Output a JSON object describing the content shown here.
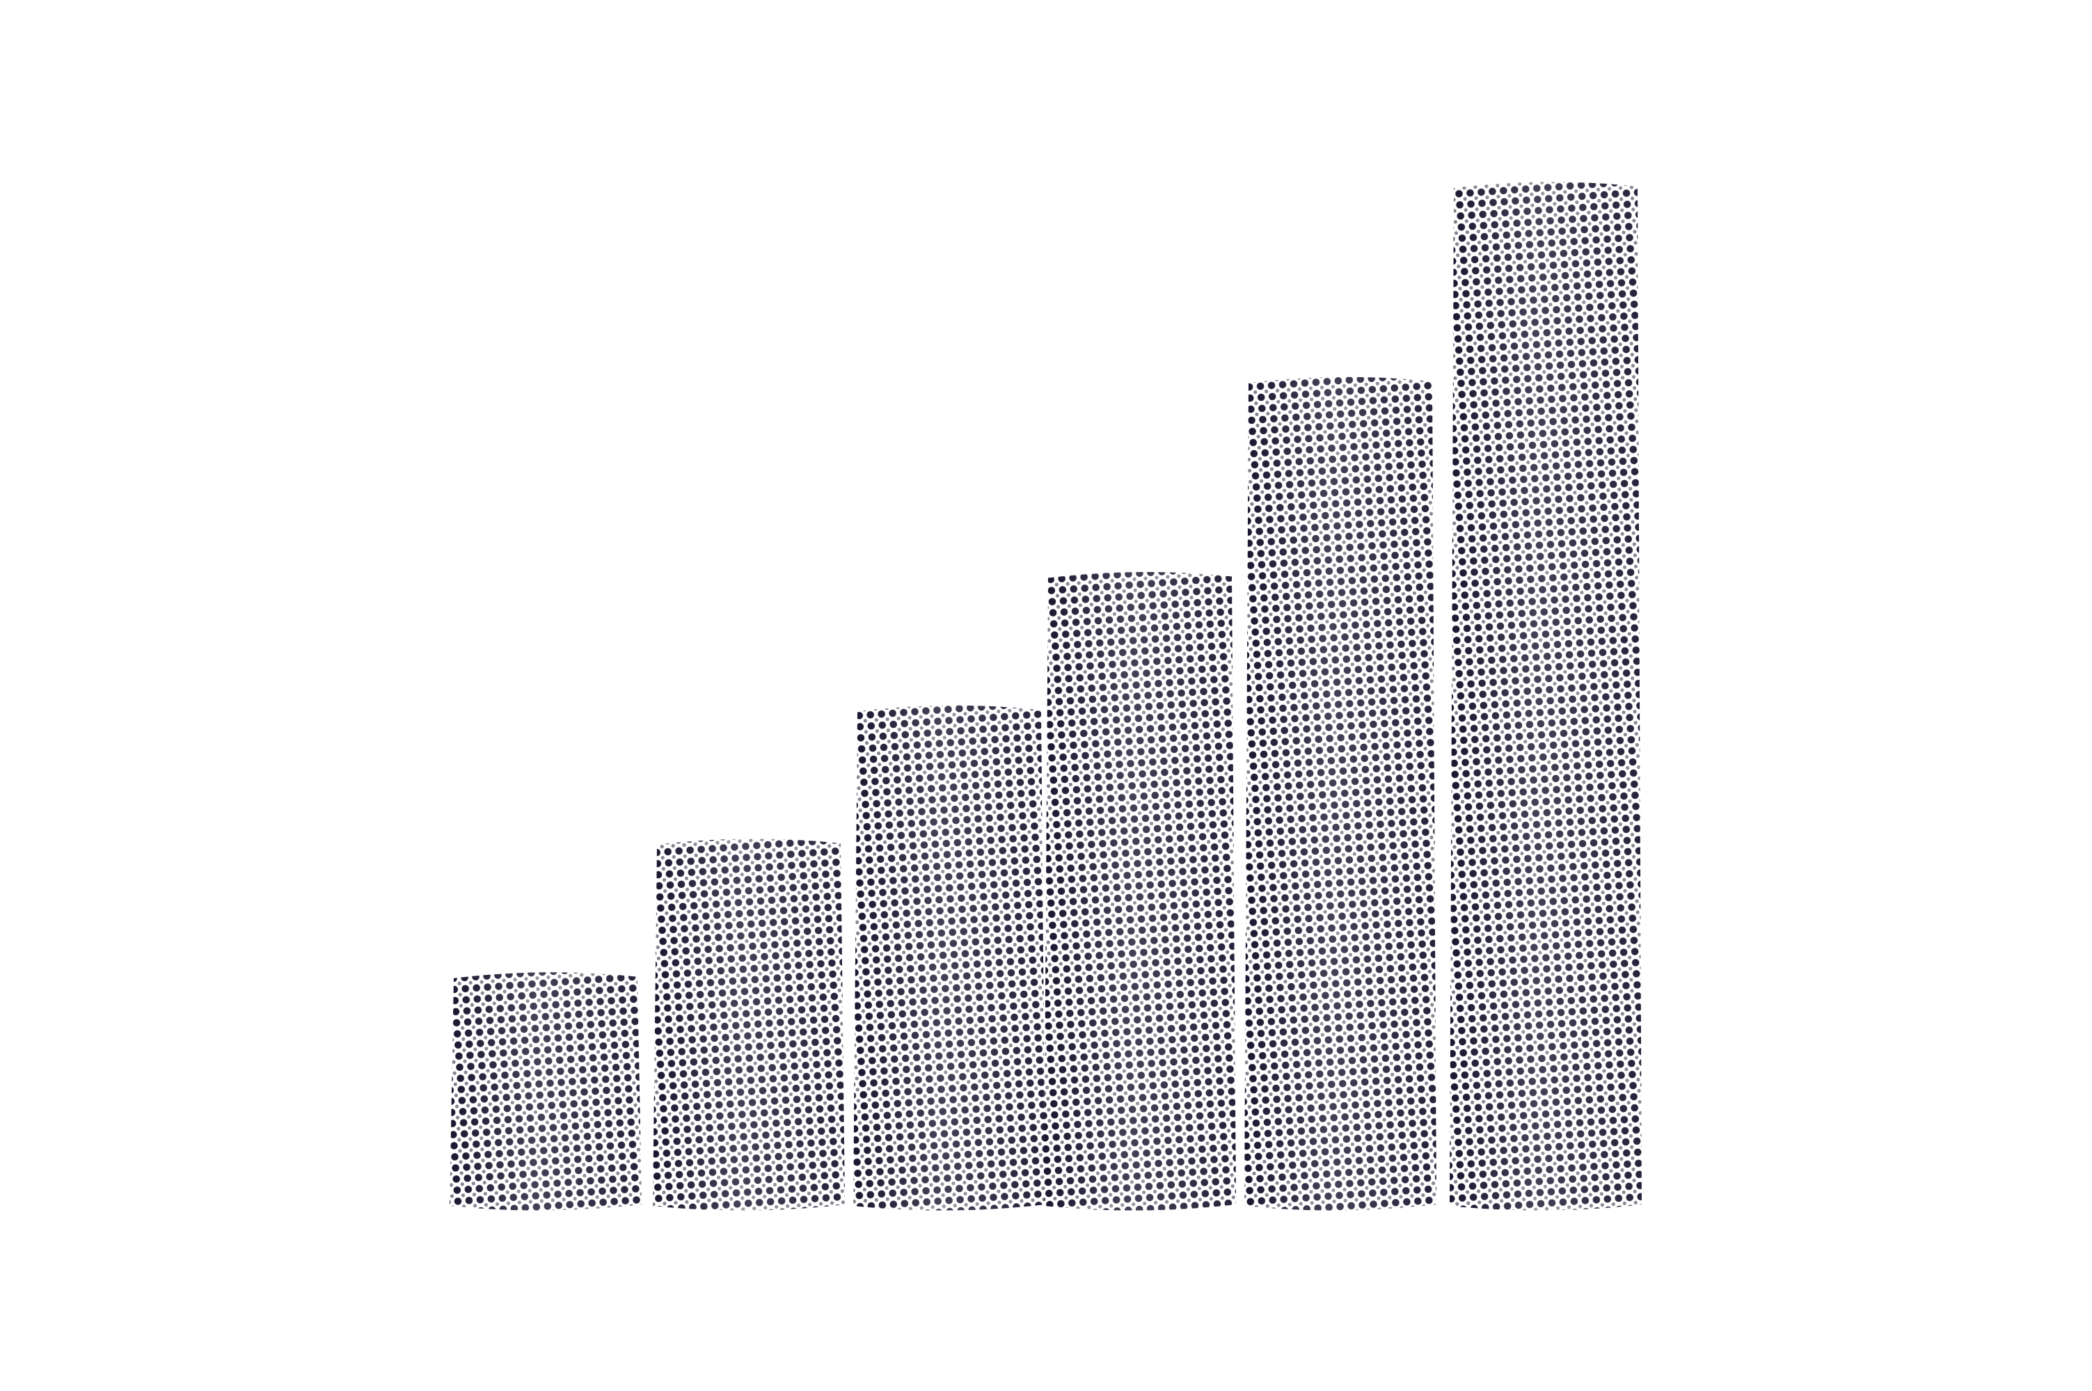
{
  "scene": {
    "subject": "halftone-bar-graph-cutout",
    "background_color": "#ffffff",
    "dot_color": "#1a1830",
    "bars": [
      {
        "level": 0.23
      },
      {
        "level": 0.36
      },
      {
        "level": 0.49
      },
      {
        "level": 0.62
      },
      {
        "level": 0.81
      },
      {
        "level": 1.0
      }
    ]
  }
}
